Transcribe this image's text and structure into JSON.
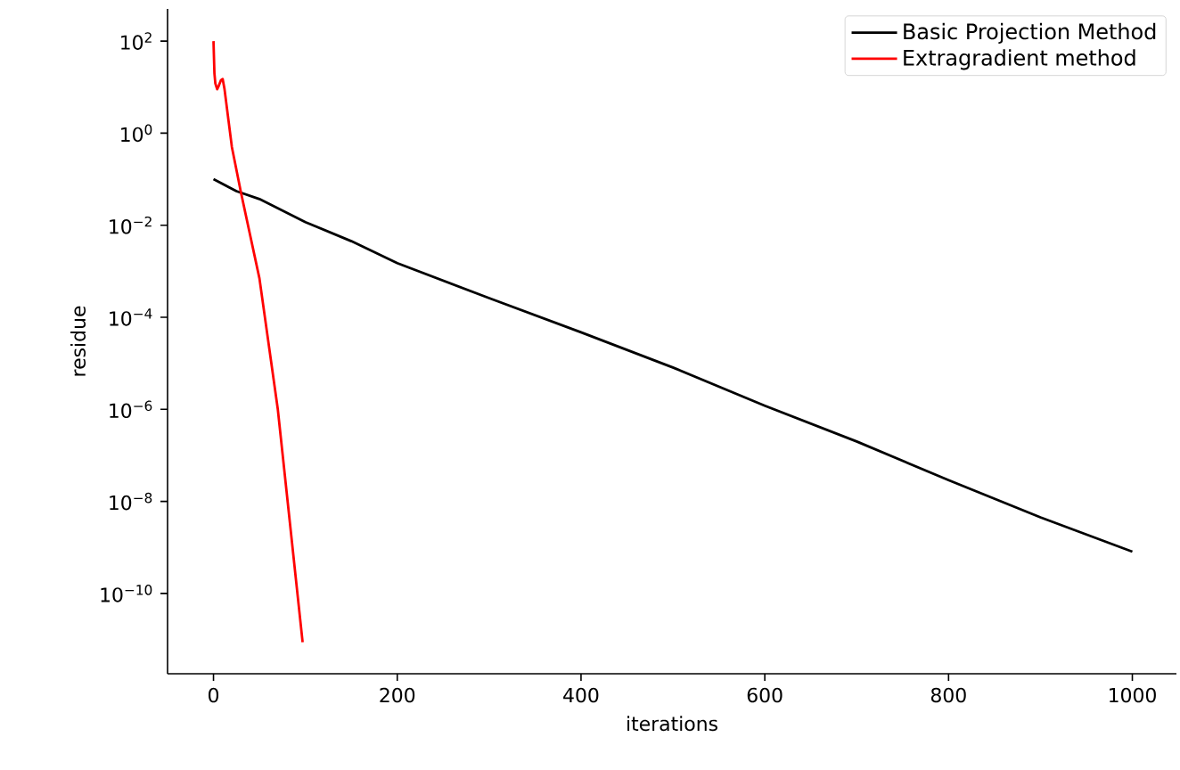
{
  "chart_data": {
    "type": "line",
    "xlabel": "iterations",
    "ylabel": "residue",
    "log": "y",
    "legend": "top right",
    "grid": false,
    "line_style": "solid",
    "marker": "none",
    "xlim": [
      -50,
      1048
    ],
    "ylim": [
      1.8e-12,
      500
    ],
    "xticks": [
      0,
      200,
      400,
      600,
      800,
      1000
    ],
    "yticks": [
      {
        "value": 100,
        "label": "10$^{2}$"
      },
      {
        "value": 1,
        "label": "10$^{0}$"
      },
      {
        "value": 0.01,
        "label": "10$^{−2}$"
      },
      {
        "value": 0.0001,
        "label": "10$^{−4}$"
      },
      {
        "value": 1e-06,
        "label": "10$^{−6}$"
      },
      {
        "value": 1e-08,
        "label": "10$^{−8}$"
      },
      {
        "value": 1e-10,
        "label": "10$^{−10}$"
      }
    ],
    "series": [
      {
        "name": "Basic Projection Method",
        "color": "#000000",
        "x": [
          0,
          25,
          50,
          100,
          150,
          200,
          300,
          400,
          500,
          600,
          700,
          800,
          900,
          1000
        ],
        "values": [
          0.1,
          0.055,
          0.037,
          0.0117,
          0.0045,
          0.0015,
          0.00026,
          4.7e-05,
          8.1e-06,
          1.2e-06,
          2e-07,
          2.9e-08,
          4.5e-09,
          8.1e-10
        ]
      },
      {
        "name": "Extragradient method",
        "color": "#ff0000",
        "x": [
          0,
          1,
          2,
          4,
          6,
          8,
          10,
          12,
          20,
          30,
          50,
          70,
          97
        ],
        "values": [
          100,
          20,
          12,
          9,
          11,
          14,
          15,
          9,
          0.5,
          0.05,
          0.0007,
          1e-06,
          8.7e-12
        ]
      }
    ]
  }
}
